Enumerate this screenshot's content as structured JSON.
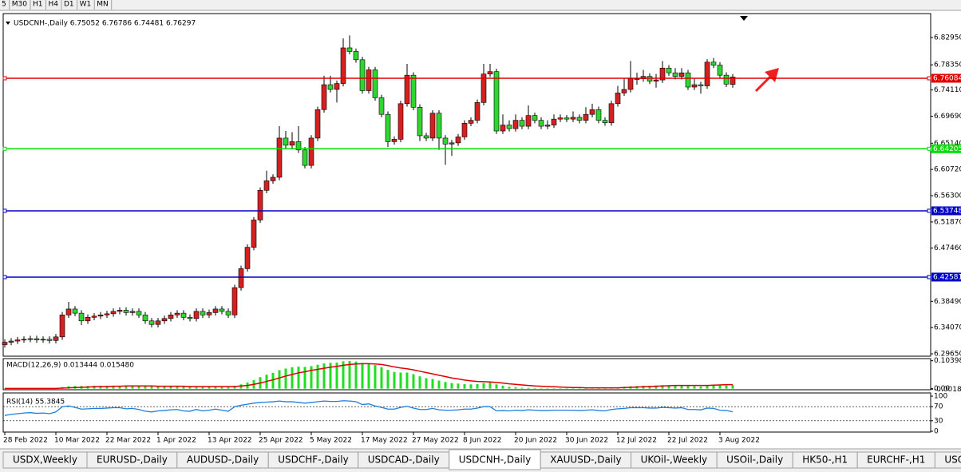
{
  "toolbar": [
    "5",
    "M30",
    "H1",
    "H4",
    "D1",
    "W1",
    "MN"
  ],
  "tabs": [
    "USDX,Weekly",
    "EURUSD-,Daily",
    "AUDUSD-,Daily",
    "USDCHF-,Daily",
    "USDCAD-,Daily",
    "USDCNH-,Daily",
    "XAUUSD-,Daily",
    "UKOil-,Weekly",
    "USOil-,Daily",
    "HK50-,H1",
    "EURCHF-,H1",
    "USOil-,I"
  ],
  "active_tab": 5,
  "chart_data": {
    "type": "candlestick",
    "title": "USDCNH-,Daily  6.75052 6.76786 6.74481 6.76297",
    "up_color": "#d42020",
    "down_color": "#2fd62f",
    "ylim": [
      6.2925,
      6.8658
    ],
    "yticks": [
      {
        "value": 6.8295,
        "label": "6.82950"
      },
      {
        "value": 6.7835,
        "label": "6.78350"
      },
      {
        "value": 6.7411,
        "label": "6.74110"
      },
      {
        "value": 6.6969,
        "label": "6.69690"
      },
      {
        "value": 6.6514,
        "label": "6.65140"
      },
      {
        "value": 6.6072,
        "label": "6.60720"
      },
      {
        "value": 6.563,
        "label": "6.56300"
      },
      {
        "value": 6.5187,
        "label": "6.51870"
      },
      {
        "value": 6.4746,
        "label": "6.47460"
      },
      {
        "value": 6.3849,
        "label": "6.38490"
      },
      {
        "value": 6.3407,
        "label": "6.34070"
      },
      {
        "value": 6.2965,
        "label": "6.29650"
      }
    ],
    "levels": [
      {
        "value": 6.76084,
        "color": "#e00000"
      },
      {
        "value": 6.64205,
        "color": "#00dd00"
      },
      {
        "value": 6.53748,
        "color": "#0000c8"
      },
      {
        "value": 6.42581,
        "color": "#0000c8"
      }
    ],
    "xtick_labels": [
      "28 Feb 2022",
      "10 Mar 2022",
      "22 Mar 2022",
      "1 Apr 2022",
      "13 Apr 2022",
      "25 Apr 2022",
      "5 May 2022",
      "17 May 2022",
      "27 May 2022",
      "8 Jun 2022",
      "20 Jun 2022",
      "30 Jun 2022",
      "12 Jul 2022",
      "22 Jul 2022",
      "3 Aug 2022"
    ],
    "candles": [
      [
        6.312,
        6.321,
        6.307,
        6.316
      ],
      [
        6.316,
        6.323,
        6.311,
        6.318
      ],
      [
        6.318,
        6.325,
        6.313,
        6.32
      ],
      [
        6.32,
        6.326,
        6.315,
        6.321
      ],
      [
        6.321,
        6.327,
        6.316,
        6.322
      ],
      [
        6.322,
        6.327,
        6.315,
        6.32
      ],
      [
        6.32,
        6.326,
        6.315,
        6.321
      ],
      [
        6.321,
        6.326,
        6.314,
        6.319
      ],
      [
        6.319,
        6.33,
        6.314,
        6.325
      ],
      [
        6.325,
        6.367,
        6.32,
        6.362
      ],
      [
        6.362,
        6.384,
        6.357,
        6.372
      ],
      [
        6.372,
        6.377,
        6.36,
        6.365
      ],
      [
        6.365,
        6.37,
        6.345,
        6.352
      ],
      [
        6.352,
        6.363,
        6.347,
        6.358
      ],
      [
        6.358,
        6.365,
        6.353,
        6.36
      ],
      [
        6.36,
        6.367,
        6.355,
        6.362
      ],
      [
        6.362,
        6.369,
        6.357,
        6.364
      ],
      [
        6.364,
        6.373,
        6.359,
        6.368
      ],
      [
        6.368,
        6.375,
        6.363,
        6.37
      ],
      [
        6.37,
        6.375,
        6.361,
        6.366
      ],
      [
        6.366,
        6.373,
        6.361,
        6.368
      ],
      [
        6.368,
        6.373,
        6.357,
        6.362
      ],
      [
        6.362,
        6.367,
        6.347,
        6.352
      ],
      [
        6.352,
        6.357,
        6.341,
        6.346
      ],
      [
        6.346,
        6.357,
        6.341,
        6.352
      ],
      [
        6.352,
        6.361,
        6.347,
        6.356
      ],
      [
        6.356,
        6.367,
        6.351,
        6.362
      ],
      [
        6.362,
        6.37,
        6.357,
        6.365
      ],
      [
        6.365,
        6.37,
        6.353,
        6.358
      ],
      [
        6.358,
        6.363,
        6.351,
        6.356
      ],
      [
        6.356,
        6.373,
        6.351,
        6.368
      ],
      [
        6.368,
        6.373,
        6.357,
        6.362
      ],
      [
        6.362,
        6.371,
        6.357,
        6.366
      ],
      [
        6.366,
        6.377,
        6.361,
        6.372
      ],
      [
        6.372,
        6.377,
        6.363,
        6.368
      ],
      [
        6.368,
        6.373,
        6.357,
        6.362
      ],
      [
        6.362,
        6.413,
        6.357,
        6.408
      ],
      [
        6.408,
        6.445,
        6.403,
        6.44
      ],
      [
        6.44,
        6.481,
        6.435,
        6.476
      ],
      [
        6.476,
        6.527,
        6.471,
        6.522
      ],
      [
        6.522,
        6.577,
        6.517,
        6.572
      ],
      [
        6.572,
        6.605,
        6.567,
        6.588
      ],
      [
        6.588,
        6.599,
        6.583,
        6.594
      ],
      [
        6.594,
        6.68,
        6.589,
        6.66
      ],
      [
        6.66,
        6.672,
        6.643,
        6.648
      ],
      [
        6.648,
        6.67,
        6.643,
        6.654
      ],
      [
        6.654,
        6.68,
        6.635,
        6.64
      ],
      [
        6.64,
        6.645,
        6.609,
        6.614
      ],
      [
        6.614,
        6.665,
        6.609,
        6.66
      ],
      [
        6.66,
        6.713,
        6.655,
        6.708
      ],
      [
        6.708,
        6.765,
        6.703,
        6.75
      ],
      [
        6.75,
        6.765,
        6.737,
        6.742
      ],
      [
        6.742,
        6.757,
        6.72,
        6.752
      ],
      [
        6.752,
        6.828,
        6.747,
        6.812
      ],
      [
        6.812,
        6.833,
        6.801,
        6.806
      ],
      [
        6.806,
        6.811,
        6.787,
        6.792
      ],
      [
        6.792,
        6.797,
        6.735,
        6.74
      ],
      [
        6.74,
        6.78,
        6.735,
        6.775
      ],
      [
        6.775,
        6.78,
        6.723,
        6.728
      ],
      [
        6.728,
        6.733,
        6.695,
        6.7
      ],
      [
        6.7,
        6.705,
        6.645,
        6.654
      ],
      [
        6.654,
        6.663,
        6.649,
        6.658
      ],
      [
        6.658,
        6.723,
        6.653,
        6.718
      ],
      [
        6.718,
        6.785,
        6.713,
        6.766
      ],
      [
        6.766,
        6.771,
        6.707,
        6.712
      ],
      [
        6.712,
        6.717,
        6.655,
        6.664
      ],
      [
        6.664,
        6.669,
        6.655,
        6.66
      ],
      [
        6.66,
        6.707,
        6.655,
        6.702
      ],
      [
        6.702,
        6.707,
        6.64,
        6.66
      ],
      [
        6.66,
        6.665,
        6.615,
        6.65
      ],
      [
        6.65,
        6.657,
        6.63,
        6.652
      ],
      [
        6.652,
        6.667,
        6.647,
        6.662
      ],
      [
        6.662,
        6.69,
        6.657,
        6.685
      ],
      [
        6.685,
        6.695,
        6.68,
        6.69
      ],
      [
        6.69,
        6.725,
        6.685,
        6.72
      ],
      [
        6.72,
        6.785,
        6.715,
        6.768
      ],
      [
        6.768,
        6.785,
        6.763,
        6.772
      ],
      [
        6.772,
        6.777,
        6.667,
        6.672
      ],
      [
        6.672,
        6.7,
        6.667,
        6.682
      ],
      [
        6.682,
        6.69,
        6.671,
        6.676
      ],
      [
        6.676,
        6.7,
        6.671,
        6.69
      ],
      [
        6.69,
        6.695,
        6.675,
        6.68
      ],
      [
        6.68,
        6.715,
        6.675,
        6.698
      ],
      [
        6.698,
        6.703,
        6.685,
        6.69
      ],
      [
        6.69,
        6.695,
        6.675,
        6.68
      ],
      [
        6.68,
        6.69,
        6.675,
        6.682
      ],
      [
        6.682,
        6.7,
        6.677,
        6.692
      ],
      [
        6.692,
        6.7,
        6.687,
        6.694
      ],
      [
        6.694,
        6.699,
        6.687,
        6.692
      ],
      [
        6.692,
        6.705,
        6.687,
        6.695
      ],
      [
        6.695,
        6.7,
        6.685,
        6.69
      ],
      [
        6.69,
        6.712,
        6.685,
        6.7
      ],
      [
        6.7,
        6.718,
        6.695,
        6.708
      ],
      [
        6.708,
        6.713,
        6.685,
        6.69
      ],
      [
        6.69,
        6.695,
        6.681,
        6.686
      ],
      [
        6.686,
        6.723,
        6.681,
        6.718
      ],
      [
        6.718,
        6.748,
        6.713,
        6.736
      ],
      [
        6.736,
        6.76,
        6.731,
        6.742
      ],
      [
        6.742,
        6.79,
        6.737,
        6.76
      ],
      [
        6.76,
        6.77,
        6.75,
        6.76
      ],
      [
        6.76,
        6.775,
        6.755,
        6.764
      ],
      [
        6.764,
        6.769,
        6.751,
        6.756
      ],
      [
        6.756,
        6.768,
        6.745,
        6.758
      ],
      [
        6.758,
        6.79,
        6.753,
        6.778
      ],
      [
        6.778,
        6.783,
        6.765,
        6.77
      ],
      [
        6.77,
        6.778,
        6.759,
        6.764
      ],
      [
        6.764,
        6.778,
        6.759,
        6.77
      ],
      [
        6.77,
        6.775,
        6.741,
        6.746
      ],
      [
        6.746,
        6.76,
        6.741,
        6.75
      ],
      [
        6.75,
        6.755,
        6.735,
        6.748
      ],
      [
        6.748,
        6.793,
        6.743,
        6.788
      ],
      [
        6.788,
        6.795,
        6.778,
        6.783
      ],
      [
        6.783,
        6.788,
        6.761,
        6.766
      ],
      [
        6.766,
        6.771,
        6.746,
        6.751
      ],
      [
        6.75052,
        6.76786,
        6.74481,
        6.76297
      ]
    ],
    "macd": {
      "label": "MACD(12,26,9) 0.013444 0.015480",
      "hist_color": "#22dd22",
      "signal_color": "#dd0000",
      "ylim": [
        -0.004,
        0.112
      ],
      "yticks": [
        {
          "value": 0.103984,
          "label": "0.103984"
        },
        {
          "value": 0,
          "label": "0.00"
        },
        {
          "value": -0.001829,
          "label": "-0.001829"
        }
      ],
      "histogram": [
        0.001,
        0.001,
        0.002,
        0.002,
        0.002,
        0.002,
        0.002,
        0.002,
        0.003,
        0.006,
        0.009,
        0.01,
        0.01,
        0.01,
        0.011,
        0.011,
        0.011,
        0.011,
        0.011,
        0.011,
        0.011,
        0.01,
        0.009,
        0.008,
        0.008,
        0.008,
        0.008,
        0.008,
        0.008,
        0.007,
        0.007,
        0.007,
        0.007,
        0.008,
        0.008,
        0.007,
        0.011,
        0.016,
        0.023,
        0.032,
        0.043,
        0.052,
        0.059,
        0.069,
        0.075,
        0.08,
        0.082,
        0.081,
        0.084,
        0.089,
        0.094,
        0.096,
        0.097,
        0.102,
        0.103,
        0.101,
        0.096,
        0.094,
        0.088,
        0.08,
        0.07,
        0.062,
        0.06,
        0.06,
        0.054,
        0.046,
        0.039,
        0.036,
        0.03,
        0.025,
        0.021,
        0.019,
        0.017,
        0.016,
        0.017,
        0.021,
        0.023,
        0.016,
        0.011,
        0.007,
        0.005,
        0.003,
        0.003,
        0.002,
        0.001,
        0.001,
        0.001,
        0.001,
        0.001,
        0.001,
        0.001,
        0.001,
        0.002,
        0.001,
        0.001,
        0.003,
        0.005,
        0.007,
        0.009,
        0.01,
        0.011,
        0.011,
        0.012,
        0.013,
        0.013,
        0.012,
        0.012,
        0.01,
        0.009,
        0.008,
        0.011,
        0.012,
        0.012,
        0.012,
        0.013
      ],
      "signal": [
        0.001,
        0.001,
        0.001,
        0.001,
        0.001,
        0.001,
        0.001,
        0.001,
        0.001,
        0.002,
        0.003,
        0.004,
        0.005,
        0.006,
        0.007,
        0.008,
        0.008,
        0.009,
        0.009,
        0.01,
        0.01,
        0.01,
        0.01,
        0.01,
        0.009,
        0.009,
        0.009,
        0.009,
        0.009,
        0.008,
        0.008,
        0.008,
        0.008,
        0.008,
        0.008,
        0.008,
        0.008,
        0.01,
        0.012,
        0.016,
        0.021,
        0.027,
        0.033,
        0.04,
        0.047,
        0.053,
        0.059,
        0.063,
        0.068,
        0.072,
        0.076,
        0.08,
        0.083,
        0.087,
        0.09,
        0.092,
        0.093,
        0.093,
        0.092,
        0.09,
        0.086,
        0.081,
        0.077,
        0.074,
        0.07,
        0.065,
        0.06,
        0.055,
        0.05,
        0.045,
        0.04,
        0.036,
        0.032,
        0.029,
        0.027,
        0.026,
        0.025,
        0.023,
        0.021,
        0.018,
        0.016,
        0.014,
        0.012,
        0.01,
        0.009,
        0.008,
        0.007,
        0.006,
        0.005,
        0.004,
        0.004,
        0.003,
        0.003,
        0.003,
        0.003,
        0.003,
        0.003,
        0.004,
        0.005,
        0.006,
        0.007,
        0.008,
        0.009,
        0.01,
        0.011,
        0.012,
        0.012,
        0.012,
        0.012,
        0.012,
        0.012,
        0.013,
        0.014,
        0.015,
        0.015
      ]
    },
    "rsi": {
      "label": "RSI(14) 55.3845",
      "color": "#1e7fdc",
      "ylim": [
        0,
        100
      ],
      "yticks": [
        100,
        70,
        30,
        0
      ],
      "levels": [
        70,
        30
      ],
      "values": [
        45,
        48,
        50,
        52,
        53,
        51,
        52,
        50,
        55,
        70,
        72,
        68,
        63,
        64,
        65,
        65,
        66,
        67,
        67,
        64,
        65,
        62,
        57,
        55,
        58,
        59,
        61,
        62,
        58,
        57,
        62,
        58,
        60,
        63,
        60,
        57,
        70,
        74,
        77,
        80,
        82,
        83,
        84,
        86,
        84,
        84,
        82,
        80,
        82,
        84,
        86,
        85,
        85,
        87,
        86,
        84,
        76,
        78,
        72,
        68,
        63,
        63,
        68,
        71,
        66,
        62,
        62,
        65,
        61,
        60,
        60,
        61,
        63,
        63,
        66,
        70,
        70,
        58,
        59,
        58,
        60,
        59,
        61,
        60,
        59,
        59,
        60,
        60,
        60,
        60,
        59,
        60,
        61,
        59,
        58,
        62,
        64,
        65,
        67,
        67,
        67,
        66,
        66,
        68,
        67,
        66,
        67,
        62,
        62,
        61,
        66,
        65,
        60,
        59,
        55.3845
      ]
    }
  }
}
